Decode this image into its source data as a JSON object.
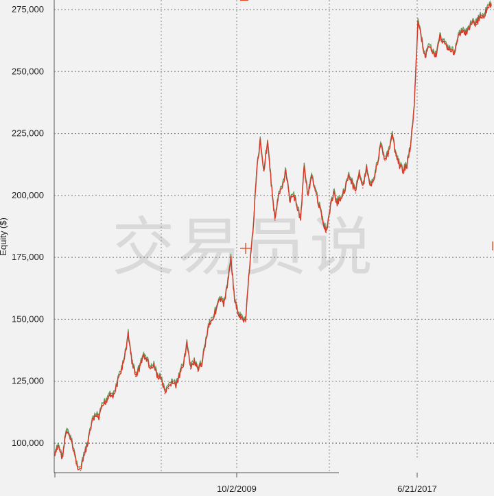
{
  "chart_data": {
    "type": "line",
    "title": "",
    "ylabel": "Equity ($)",
    "xlabel": "",
    "ylim": [
      86000,
      278000
    ],
    "y_ticks": [
      100000,
      125000,
      150000,
      175000,
      200000,
      225000,
      250000,
      275000
    ],
    "y_tick_labels": [
      "100,000",
      "125,000",
      "150,000",
      "175,000",
      "200,000",
      "225,000",
      "250,000",
      "275,000"
    ],
    "x_tick_labels": [
      "10/2/2009",
      "6/21/2017"
    ],
    "grid": true,
    "watermark": "交易员说",
    "series": [
      {
        "color": "#d83a2a",
        "band_color": "#3f8a3f",
        "values": [
          95000,
          99000,
          94000,
          104000,
          103000,
          98000,
          91000,
          89000,
          95000,
          100000,
          108000,
          111000,
          110000,
          115000,
          117000,
          120000,
          119000,
          124000,
          129000,
          134000,
          144000,
          133000,
          127000,
          130000,
          135000,
          134000,
          130000,
          131000,
          127000,
          126000,
          120000,
          122000,
          125000,
          123000,
          127000,
          132000,
          140000,
          130000,
          133000,
          129000,
          132000,
          140000,
          148000,
          150000,
          154000,
          158000,
          156000,
          163000,
          175000,
          158000,
          152000,
          150000,
          149000,
          170000,
          185000,
          209000,
          222000,
          210000,
          222000,
          205000,
          190000,
          200000,
          203000,
          210000,
          198000,
          200000,
          196000,
          190000,
          212000,
          200000,
          207000,
          203000,
          196000,
          190000,
          185000,
          194000,
          201000,
          197000,
          199000,
          202000,
          208000,
          205000,
          201000,
          210000,
          203000,
          211000,
          204000,
          207000,
          213000,
          221000,
          214000,
          217000,
          224000,
          216000,
          212000,
          210000,
          212000,
          220000,
          236000,
          270000,
          263000,
          256000,
          260000,
          258000,
          256000,
          264000,
          262000,
          260000,
          258000,
          258000,
          264000,
          266000,
          265000,
          268000,
          270000,
          269000,
          273000,
          272000,
          276000,
          277000
        ]
      }
    ]
  }
}
